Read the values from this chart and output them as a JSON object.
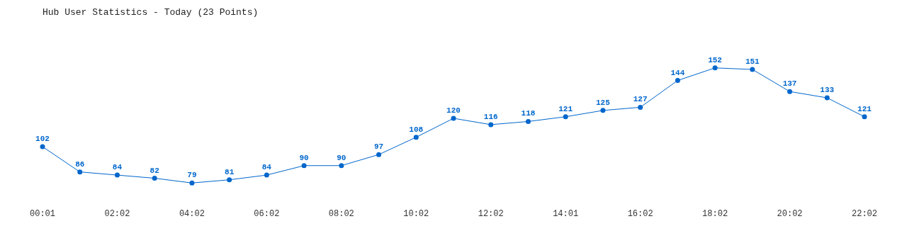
{
  "chart_data": {
    "type": "line",
    "title": "Hub User Statistics - Today (23 Points)",
    "categories": [
      "00:01",
      null,
      "02:02",
      null,
      "04:02",
      null,
      "06:02",
      null,
      "08:02",
      null,
      "10:02",
      null,
      "12:02",
      null,
      "14:01",
      null,
      "16:02",
      null,
      "18:02",
      null,
      "20:02",
      null,
      "22:02"
    ],
    "series": [
      {
        "color": "#0066cc",
        "values": [
          102,
          86,
          84,
          82,
          79,
          81,
          84,
          90,
          90,
          97,
          108,
          120,
          116,
          118,
          121,
          125,
          127,
          144,
          152,
          151,
          137,
          133,
          121
        ]
      }
    ],
    "data_labels": true,
    "marker": "circle"
  }
}
